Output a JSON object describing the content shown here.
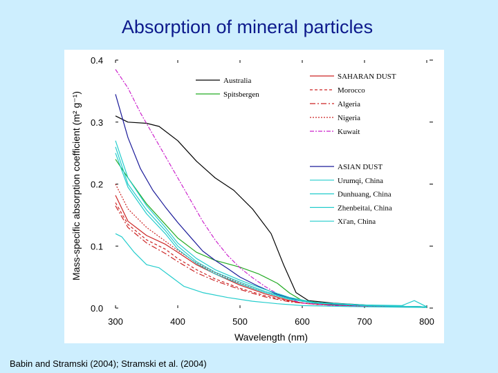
{
  "slide": {
    "title": "Absorption of mineral particles",
    "citation": "Babin and Stramski (2004); Stramski et al. (2004)"
  },
  "chart_data": {
    "type": "line",
    "title": "",
    "xlabel": "Wavelength (nm)",
    "ylabel": "Mass-specific absorption coefficient (m² g⁻¹)",
    "xlim": [
      300,
      800
    ],
    "ylim": [
      0,
      0.4
    ],
    "xticks": [
      "300",
      "400",
      "500",
      "600",
      "700",
      "800"
    ],
    "yticks": [
      "0.0",
      "0.1",
      "0.2",
      "0.3",
      "0.4"
    ],
    "grid": false,
    "legend_groups": [
      {
        "placement": "top-middle",
        "entries": [
          "Australia",
          "Spitsbergen"
        ]
      },
      {
        "placement": "top-right",
        "entries": [
          "SAHARAN DUST",
          "Morocco",
          "Algeria",
          "Nigeria",
          "Kuwait"
        ]
      },
      {
        "placement": "right",
        "entries": [
          "ASIAN DUST",
          "Urumqi, China",
          "Dunhuang, China",
          "Zhenbeitai, China",
          "Xi'an, China"
        ]
      }
    ],
    "series": [
      {
        "name": "Australia",
        "color": "#000000",
        "dash": "solid",
        "x": [
          300,
          320,
          350,
          370,
          400,
          430,
          460,
          490,
          520,
          550,
          570,
          590,
          610,
          650,
          700,
          750,
          800
        ],
        "y": [
          0.31,
          0.3,
          0.298,
          0.293,
          0.27,
          0.237,
          0.21,
          0.19,
          0.16,
          0.12,
          0.07,
          0.025,
          0.012,
          0.008,
          0.005,
          0.003,
          0.002
        ]
      },
      {
        "name": "Spitsbergen",
        "color": "#22aa22",
        "dash": "solid",
        "x": [
          300,
          320,
          350,
          380,
          400,
          430,
          460,
          500,
          530,
          560,
          580,
          600,
          650,
          700,
          800
        ],
        "y": [
          0.24,
          0.21,
          0.168,
          0.135,
          0.113,
          0.09,
          0.077,
          0.066,
          0.055,
          0.04,
          0.024,
          0.012,
          0.006,
          0.004,
          0.002
        ]
      },
      {
        "name": "SAHARAN DUST",
        "color": "#cc2222",
        "dash": "solid",
        "x": [
          300,
          320,
          350,
          380,
          400,
          430,
          460,
          500,
          540,
          580,
          600,
          650,
          700,
          800
        ],
        "y": [
          0.182,
          0.14,
          0.117,
          0.103,
          0.09,
          0.07,
          0.055,
          0.037,
          0.023,
          0.012,
          0.008,
          0.005,
          0.003,
          0.002
        ]
      },
      {
        "name": "Morocco",
        "color": "#cc2222",
        "dash": "4,3",
        "x": [
          300,
          320,
          350,
          380,
          400,
          430,
          460,
          500,
          540,
          580,
          620,
          700,
          800
        ],
        "y": [
          0.17,
          0.135,
          0.11,
          0.095,
          0.08,
          0.062,
          0.047,
          0.032,
          0.02,
          0.011,
          0.006,
          0.003,
          0.001
        ]
      },
      {
        "name": "Algeria",
        "color": "#cc2222",
        "dash": "8,3,2,3",
        "x": [
          300,
          320,
          350,
          380,
          400,
          430,
          460,
          500,
          540,
          580,
          620,
          700,
          800
        ],
        "y": [
          0.165,
          0.13,
          0.105,
          0.088,
          0.075,
          0.057,
          0.044,
          0.03,
          0.018,
          0.01,
          0.006,
          0.003,
          0.001
        ]
      },
      {
        "name": "Nigeria",
        "color": "#cc2222",
        "dash": "2,2",
        "x": [
          300,
          320,
          350,
          380,
          400,
          430,
          460,
          500,
          540,
          580,
          620,
          700,
          800
        ],
        "y": [
          0.2,
          0.16,
          0.13,
          0.108,
          0.093,
          0.073,
          0.057,
          0.04,
          0.025,
          0.014,
          0.008,
          0.004,
          0.002
        ]
      },
      {
        "name": "Kuwait",
        "color": "#cc22cc",
        "dash": "6,2,2,2",
        "x": [
          300,
          320,
          340,
          360,
          380,
          400,
          420,
          440,
          460,
          480,
          500,
          520,
          540,
          560,
          580,
          600,
          650,
          700,
          800
        ],
        "y": [
          0.385,
          0.355,
          0.315,
          0.28,
          0.245,
          0.21,
          0.175,
          0.14,
          0.11,
          0.085,
          0.065,
          0.049,
          0.035,
          0.023,
          0.014,
          0.008,
          0.004,
          0.003,
          0.002
        ]
      },
      {
        "name": "ASIAN DUST",
        "color": "#1a1a99",
        "dash": "solid",
        "x": [
          300,
          320,
          340,
          360,
          380,
          400,
          420,
          440,
          460,
          480,
          500,
          530,
          560,
          600,
          650,
          700,
          800
        ],
        "y": [
          0.345,
          0.275,
          0.225,
          0.19,
          0.163,
          0.138,
          0.115,
          0.092,
          0.077,
          0.064,
          0.05,
          0.035,
          0.022,
          0.011,
          0.006,
          0.004,
          0.002
        ]
      },
      {
        "name": "Urumqi, China",
        "color": "#22cccc",
        "dash": "solid",
        "x": [
          300,
          320,
          350,
          380,
          400,
          430,
          460,
          500,
          540,
          580,
          620,
          700,
          760,
          780,
          800
        ],
        "y": [
          0.27,
          0.21,
          0.165,
          0.13,
          0.105,
          0.08,
          0.062,
          0.045,
          0.03,
          0.017,
          0.009,
          0.005,
          0.004,
          0.012,
          0.002
        ]
      },
      {
        "name": "Dunhuang, China",
        "color": "#22cccc",
        "dash": "solid",
        "x": [
          300,
          320,
          350,
          380,
          400,
          430,
          460,
          500,
          540,
          580,
          620,
          700,
          800
        ],
        "y": [
          0.26,
          0.2,
          0.158,
          0.125,
          0.1,
          0.075,
          0.058,
          0.042,
          0.027,
          0.015,
          0.008,
          0.004,
          0.002
        ]
      },
      {
        "name": "Zhenbeitai, China",
        "color": "#22cccc",
        "dash": "solid",
        "x": [
          300,
          320,
          350,
          380,
          400,
          430,
          460,
          500,
          540,
          580,
          620,
          700,
          800
        ],
        "y": [
          0.25,
          0.195,
          0.152,
          0.12,
          0.095,
          0.072,
          0.055,
          0.039,
          0.025,
          0.014,
          0.008,
          0.004,
          0.002
        ]
      },
      {
        "name": "Xi'an, China",
        "color": "#22cccc",
        "dash": "solid",
        "x": [
          300,
          310,
          330,
          350,
          370,
          390,
          410,
          440,
          480,
          520,
          560,
          600,
          700,
          800
        ],
        "y": [
          0.12,
          0.115,
          0.09,
          0.07,
          0.065,
          0.05,
          0.035,
          0.025,
          0.017,
          0.011,
          0.007,
          0.004,
          0.002,
          0.001
        ]
      }
    ]
  }
}
